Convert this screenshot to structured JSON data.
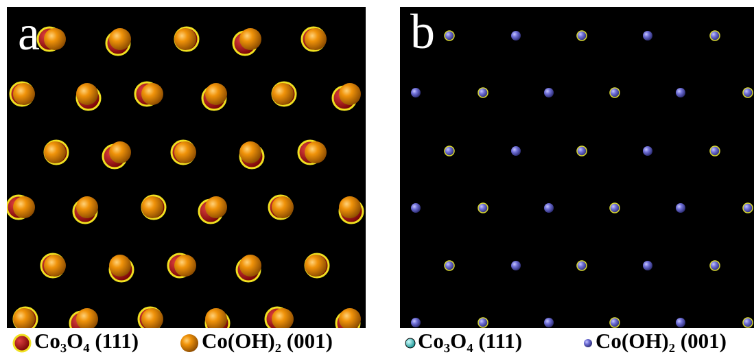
{
  "panels": [
    {
      "label": "a",
      "legend": [
        "Co₃O₄ (111)",
        "Co(OH)₂ (001)"
      ]
    },
    {
      "label": "b",
      "legend": [
        "Co₃O₄ (111)",
        "Co(OH)₂ (001)"
      ]
    }
  ]
}
